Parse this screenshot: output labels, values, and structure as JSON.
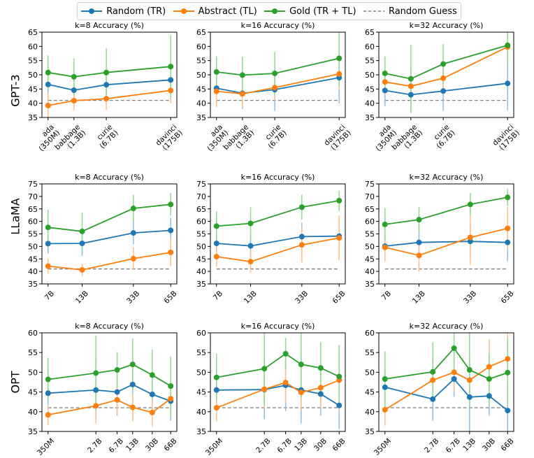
{
  "legend": {
    "items": [
      {
        "label": "Random (TR)",
        "color": "#1f77b4"
      },
      {
        "label": "Abstract (TL)",
        "color": "#ff7f0e"
      },
      {
        "label": "Gold (TR + TL)",
        "color": "#2ca02c"
      },
      {
        "label": "Random Guess",
        "color": "#7f7f7f"
      }
    ]
  },
  "rows": [
    {
      "label": "GPT-3"
    },
    {
      "label": "LLaMA"
    },
    {
      "label": "OPT"
    }
  ],
  "chart_data": [
    {
      "type": "line",
      "row": 0,
      "col": 0,
      "title": "k=8 Accuracy (%)",
      "x": [
        0.35,
        1.3,
        6.7,
        175
      ],
      "xscale": "log",
      "tick_labels": [
        "ada\n(350M)",
        "babbage\n(1.3B)",
        "curie\n(6.7B)",
        "davinci\n(175B)"
      ],
      "ylim": [
        35,
        65
      ],
      "yticks": [
        35,
        40,
        45,
        50,
        55,
        60,
        65
      ],
      "random_guess": 41,
      "series": [
        {
          "name": "Random (TR)",
          "values": [
            46.6,
            44.6,
            46.5,
            48.2
          ],
          "err": [
            5.5,
            5.0,
            5.5,
            5.5
          ]
        },
        {
          "name": "Abstract (TL)",
          "values": [
            39.2,
            40.9,
            41.6,
            44.5
          ],
          "err": [
            4.5,
            3.5,
            4.0,
            4.5
          ]
        },
        {
          "name": "Gold (TR + TL)",
          "values": [
            50.8,
            49.3,
            50.8,
            52.9
          ],
          "err": [
            6.0,
            6.5,
            8.5,
            11.0
          ]
        }
      ]
    },
    {
      "type": "line",
      "row": 0,
      "col": 1,
      "title": "k=16 Accuracy (%)",
      "x": [
        0.35,
        1.3,
        6.7,
        175
      ],
      "xscale": "log",
      "tick_labels": [
        "ada\n(350M)",
        "babbage\n(1.3B)",
        "curie\n(6.7B)",
        "davinci\n(175B)"
      ],
      "ylim": [
        35,
        65
      ],
      "yticks": [
        35,
        40,
        45,
        50,
        55,
        60,
        65
      ],
      "random_guess": 41,
      "series": [
        {
          "name": "Random (TR)",
          "values": [
            45.3,
            43.5,
            44.8,
            49.0
          ],
          "err": [
            5.0,
            5.5,
            7.5,
            9.0
          ]
        },
        {
          "name": "Abstract (TL)",
          "values": [
            44.2,
            43.3,
            45.5,
            50.3
          ],
          "err": [
            5.5,
            4.5,
            4.5,
            5.5
          ]
        },
        {
          "name": "Gold (TR + TL)",
          "values": [
            51.0,
            49.9,
            50.5,
            55.8
          ],
          "err": [
            5.5,
            6.5,
            7.5,
            10.0
          ]
        }
      ]
    },
    {
      "type": "line",
      "row": 0,
      "col": 2,
      "title": "k=32 Accuracy (%)",
      "x": [
        0.35,
        1.3,
        6.7,
        175
      ],
      "xscale": "log",
      "tick_labels": [
        "ada\n(350M)",
        "babbage\n(1.3B)",
        "curie\n(6.7B)",
        "davinci\n(175B)"
      ],
      "ylim": [
        35,
        65
      ],
      "yticks": [
        35,
        40,
        45,
        50,
        55,
        60,
        65
      ],
      "random_guess": 41,
      "series": [
        {
          "name": "Random (TR)",
          "values": [
            44.5,
            43.0,
            44.3,
            47.0
          ],
          "err": [
            5.5,
            5.5,
            7.0,
            9.5
          ]
        },
        {
          "name": "Abstract (TL)",
          "values": [
            47.5,
            46.0,
            48.8,
            59.8
          ],
          "err": [
            4.5,
            6.0,
            5.5,
            5.5
          ]
        },
        {
          "name": "Gold (TR + TL)",
          "values": [
            50.5,
            48.6,
            53.8,
            60.4
          ],
          "err": [
            6.0,
            12.0,
            7.0,
            6.0
          ]
        }
      ]
    },
    {
      "type": "line",
      "row": 1,
      "col": 0,
      "title": "k=8 Accuracy (%)",
      "x": [
        7,
        13,
        33,
        65
      ],
      "xscale": "log",
      "tick_labels": [
        "7B",
        "13B",
        "33B",
        "65B"
      ],
      "ylim": [
        35,
        75
      ],
      "yticks": [
        35,
        40,
        45,
        50,
        55,
        60,
        65,
        70,
        75
      ],
      "random_guess": 41,
      "series": [
        {
          "name": "Random (TR)",
          "values": [
            51.1,
            51.2,
            55.4,
            56.4
          ],
          "err": [
            4.0,
            5.0,
            4.5,
            5.0
          ]
        },
        {
          "name": "Abstract (TL)",
          "values": [
            42.1,
            40.6,
            45.1,
            47.6
          ],
          "err": [
            3.0,
            2.5,
            4.5,
            5.5
          ]
        },
        {
          "name": "Gold (TR + TL)",
          "values": [
            57.6,
            56.0,
            65.2,
            66.8
          ],
          "err": [
            7.0,
            7.5,
            5.5,
            4.5
          ]
        }
      ]
    },
    {
      "type": "line",
      "row": 1,
      "col": 1,
      "title": "k=16 Accuracy (%)",
      "x": [
        7,
        13,
        33,
        65
      ],
      "xscale": "log",
      "tick_labels": [
        "7B",
        "13B",
        "33B",
        "65B"
      ],
      "ylim": [
        35,
        75
      ],
      "yticks": [
        35,
        40,
        45,
        50,
        55,
        60,
        65,
        70,
        75
      ],
      "random_guess": 41,
      "series": [
        {
          "name": "Random (TR)",
          "values": [
            51.2,
            50.2,
            53.9,
            54.1
          ],
          "err": [
            4.5,
            4.5,
            5.5,
            5.5
          ]
        },
        {
          "name": "Abstract (TL)",
          "values": [
            45.9,
            43.9,
            50.6,
            53.4
          ],
          "err": [
            4.0,
            4.5,
            7.0,
            9.0
          ]
        },
        {
          "name": "Gold (TR + TL)",
          "values": [
            58.1,
            59.2,
            65.7,
            68.3
          ],
          "err": [
            6.0,
            6.5,
            5.0,
            4.0
          ]
        }
      ]
    },
    {
      "type": "line",
      "row": 1,
      "col": 2,
      "title": "k=32 Accuracy (%)",
      "x": [
        7,
        13,
        33,
        65
      ],
      "xscale": "log",
      "tick_labels": [
        "7B",
        "13B",
        "33B",
        "65B"
      ],
      "ylim": [
        35,
        75
      ],
      "yticks": [
        35,
        40,
        45,
        50,
        55,
        60,
        65,
        70,
        75
      ],
      "random_guess": 41,
      "series": [
        {
          "name": "Random (TR)",
          "values": [
            50.1,
            51.6,
            52.0,
            51.6
          ],
          "err": [
            6.0,
            6.5,
            6.5,
            7.5
          ]
        },
        {
          "name": "Abstract (TL)",
          "values": [
            49.6,
            46.4,
            53.6,
            57.2
          ],
          "err": [
            5.5,
            6.5,
            11.0,
            8.5
          ]
        },
        {
          "name": "Gold (TR + TL)",
          "values": [
            58.8,
            60.7,
            66.8,
            69.6
          ],
          "err": [
            6.5,
            5.0,
            4.5,
            3.5
          ]
        }
      ]
    },
    {
      "type": "line",
      "row": 2,
      "col": 0,
      "title": "k=8 Accuracy (%)",
      "x": [
        0.35,
        2.7,
        6.7,
        13,
        30,
        66
      ],
      "xscale": "log",
      "tick_labels": [
        "350M",
        "2.7B",
        "6.7B",
        "13B",
        "30B",
        "66B"
      ],
      "ylim": [
        35,
        60
      ],
      "yticks": [
        35,
        40,
        45,
        50,
        55,
        60
      ],
      "random_guess": 41,
      "series": [
        {
          "name": "Random (TR)",
          "values": [
            44.7,
            45.5,
            45.0,
            46.9,
            44.4,
            42.7
          ],
          "err": [
            5.5,
            7.5,
            6.0,
            6.5,
            5.0,
            5.0
          ]
        },
        {
          "name": "Abstract (TL)",
          "values": [
            39.2,
            41.5,
            43.0,
            41.1,
            39.8,
            43.3
          ],
          "err": [
            2.5,
            4.5,
            3.5,
            3.5,
            3.5,
            4.5
          ]
        },
        {
          "name": "Gold (TR + TL)",
          "values": [
            48.2,
            49.8,
            50.6,
            52.0,
            49.3,
            46.5
          ],
          "err": [
            5.5,
            9.5,
            4.5,
            6.5,
            6.5,
            7.5
          ]
        }
      ]
    },
    {
      "type": "line",
      "row": 2,
      "col": 1,
      "title": "k=16 Accuracy (%)",
      "x": [
        0.35,
        2.7,
        6.7,
        13,
        30,
        66
      ],
      "xscale": "log",
      "tick_labels": [
        "350M",
        "2.7B",
        "6.7B",
        "13B",
        "30B",
        "66B"
      ],
      "ylim": [
        35,
        60
      ],
      "yticks": [
        35,
        40,
        45,
        50,
        55,
        60
      ],
      "random_guess": 41,
      "series": [
        {
          "name": "Random (TR)",
          "values": [
            45.5,
            45.6,
            46.7,
            45.5,
            44.5,
            41.6
          ],
          "err": [
            5.5,
            7.5,
            6.5,
            8.5,
            5.5,
            6.0
          ]
        },
        {
          "name": "Abstract (TL)",
          "values": [
            41.0,
            45.7,
            47.4,
            44.9,
            46.1,
            48.0
          ],
          "err": [
            3.5,
            5.0,
            5.0,
            4.5,
            5.0,
            7.5
          ]
        },
        {
          "name": "Gold (TR + TL)",
          "values": [
            48.7,
            50.9,
            54.7,
            52.0,
            51.1,
            48.9
          ],
          "err": [
            6.0,
            9.5,
            4.0,
            8.5,
            6.5,
            8.0
          ]
        }
      ]
    },
    {
      "type": "line",
      "row": 2,
      "col": 2,
      "title": "k=32 Accuracy (%)",
      "x": [
        0.35,
        2.7,
        6.7,
        13,
        30,
        66
      ],
      "xscale": "log",
      "tick_labels": [
        "350M",
        "2.7B",
        "6.7B",
        "13B",
        "30B",
        "66B"
      ],
      "ylim": [
        35,
        60
      ],
      "yticks": [
        35,
        40,
        45,
        50,
        55,
        60
      ],
      "random_guess": 41,
      "series": [
        {
          "name": "Random (TR)",
          "values": [
            46.2,
            43.2,
            48.3,
            43.7,
            44.0,
            40.3
          ],
          "err": [
            5.0,
            5.5,
            4.5,
            9.5,
            5.0,
            6.0
          ]
        },
        {
          "name": "Abstract (TL)",
          "values": [
            40.5,
            48.0,
            50.0,
            48.0,
            51.4,
            53.4
          ],
          "err": [
            4.0,
            5.5,
            5.0,
            6.5,
            7.0,
            6.5
          ]
        },
        {
          "name": "Gold (TR + TL)",
          "values": [
            48.3,
            50.1,
            56.1,
            50.6,
            48.3,
            49.9
          ],
          "err": [
            7.0,
            7.5,
            6.0,
            9.5,
            6.5,
            8.5
          ]
        }
      ]
    }
  ]
}
